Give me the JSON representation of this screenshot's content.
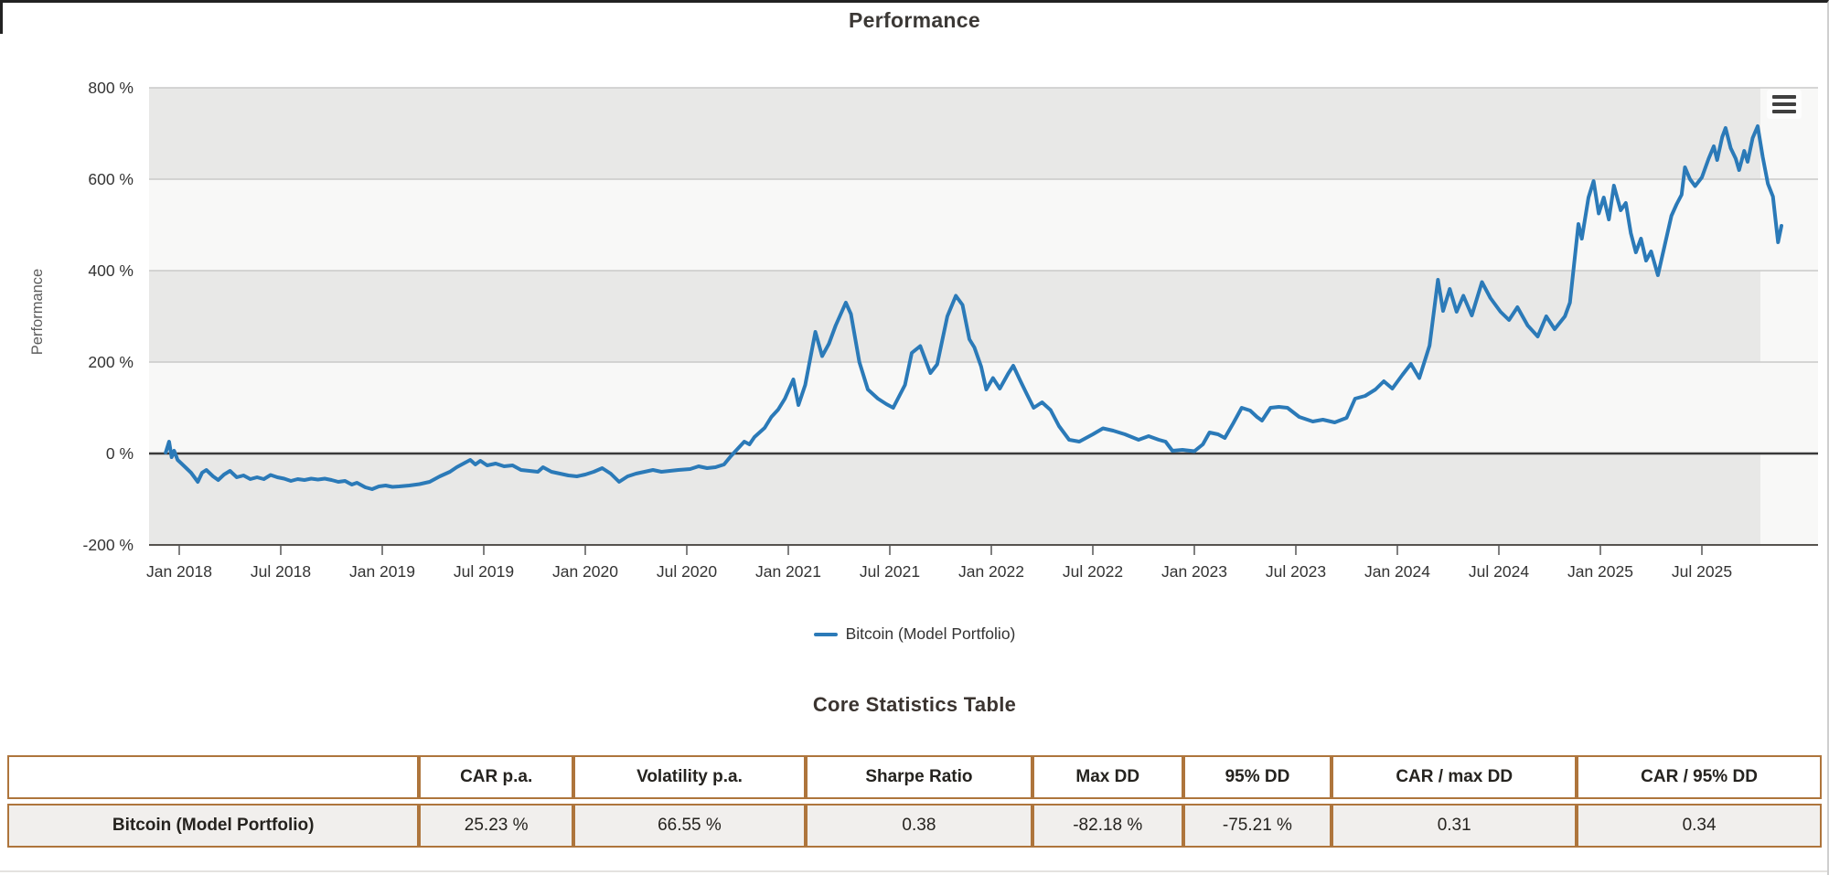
{
  "page": {
    "chart_title": "Performance",
    "table_title": "Core Statistics Table"
  },
  "chart_data": {
    "type": "line",
    "title": "Performance",
    "xlabel": "",
    "ylabel": "Performance",
    "legend_position": "bottom-center",
    "grid": true,
    "colors": {
      "plot_bg": "#f8f8f7",
      "band": "#e8e8e7",
      "gridline": "#c9c9c9",
      "zero_line": "#3a3a3a",
      "axis_line": "#56534f",
      "series_blue": "#2b7ab8"
    },
    "y_axis": {
      "min": -200,
      "max": 800,
      "tick_interval": 200,
      "tick_values": [
        800,
        600,
        400,
        200,
        0,
        -200
      ],
      "tick_labels": [
        "800 %",
        "600 %",
        "400 %",
        "200 %",
        "0 %",
        "-200 %"
      ]
    },
    "x_axis": {
      "tick_months": [
        0,
        6,
        12,
        18,
        24,
        30,
        36,
        42,
        48,
        54,
        60,
        66,
        72,
        78,
        84,
        90
      ],
      "tick_labels": [
        "Jan 2018",
        "Jul 2018",
        "Jan 2019",
        "Jul 2019",
        "Jan 2020",
        "Jul 2020",
        "Jan 2021",
        "Jul 2021",
        "Jan 2022",
        "Jul 2022",
        "Jan 2023",
        "Jul 2023",
        "Jan 2024",
        "Jul 2024",
        "Jan 2025",
        "Jul 2025"
      ]
    },
    "series": [
      {
        "name": "Bitcoin (Model Portfolio)",
        "color": "#2b7ab8",
        "unit": "%",
        "points": [
          [
            -0.8,
            2
          ],
          [
            -0.6,
            26
          ],
          [
            -0.45,
            -8
          ],
          [
            -0.3,
            6
          ],
          [
            -0.1,
            -14
          ],
          [
            0.3,
            -28
          ],
          [
            0.7,
            -42
          ],
          [
            1.1,
            -62
          ],
          [
            1.35,
            -42
          ],
          [
            1.6,
            -36
          ],
          [
            2,
            -50
          ],
          [
            2.3,
            -58
          ],
          [
            2.65,
            -46
          ],
          [
            3,
            -38
          ],
          [
            3.4,
            -52
          ],
          [
            3.8,
            -48
          ],
          [
            4.2,
            -56
          ],
          [
            4.6,
            -52
          ],
          [
            5,
            -56
          ],
          [
            5.4,
            -47
          ],
          [
            5.8,
            -52
          ],
          [
            6.2,
            -55
          ],
          [
            6.6,
            -60
          ],
          [
            7,
            -56
          ],
          [
            7.4,
            -58
          ],
          [
            7.8,
            -55
          ],
          [
            8.2,
            -57
          ],
          [
            8.6,
            -55
          ],
          [
            9,
            -58
          ],
          [
            9.4,
            -62
          ],
          [
            9.8,
            -60
          ],
          [
            10.2,
            -68
          ],
          [
            10.5,
            -64
          ],
          [
            11,
            -74
          ],
          [
            11.4,
            -78
          ],
          [
            11.8,
            -72
          ],
          [
            12.2,
            -70
          ],
          [
            12.6,
            -73
          ],
          [
            13,
            -72
          ],
          [
            13.6,
            -70
          ],
          [
            14.2,
            -67
          ],
          [
            14.8,
            -62
          ],
          [
            15.4,
            -50
          ],
          [
            16,
            -40
          ],
          [
            16.4,
            -30
          ],
          [
            16.8,
            -22
          ],
          [
            17.2,
            -14
          ],
          [
            17.5,
            -24
          ],
          [
            17.8,
            -16
          ],
          [
            18.2,
            -26
          ],
          [
            18.7,
            -22
          ],
          [
            19.2,
            -28
          ],
          [
            19.7,
            -26
          ],
          [
            20.2,
            -36
          ],
          [
            20.7,
            -38
          ],
          [
            21.2,
            -40
          ],
          [
            21.5,
            -30
          ],
          [
            22,
            -40
          ],
          [
            22.5,
            -44
          ],
          [
            23,
            -48
          ],
          [
            23.5,
            -50
          ],
          [
            24,
            -46
          ],
          [
            24.5,
            -40
          ],
          [
            25,
            -32
          ],
          [
            25.5,
            -44
          ],
          [
            26,
            -62
          ],
          [
            26.5,
            -50
          ],
          [
            27,
            -44
          ],
          [
            27.5,
            -40
          ],
          [
            28,
            -36
          ],
          [
            28.5,
            -40
          ],
          [
            29,
            -38
          ],
          [
            29.5,
            -36
          ],
          [
            30.2,
            -34
          ],
          [
            30.7,
            -28
          ],
          [
            31.2,
            -32
          ],
          [
            31.7,
            -30
          ],
          [
            32.2,
            -24
          ],
          [
            32.6,
            -6
          ],
          [
            33,
            10
          ],
          [
            33.4,
            26
          ],
          [
            33.7,
            20
          ],
          [
            34,
            36
          ],
          [
            34.6,
            56
          ],
          [
            35,
            80
          ],
          [
            35.4,
            96
          ],
          [
            35.8,
            120
          ],
          [
            36.3,
            162
          ],
          [
            36.6,
            106
          ],
          [
            37,
            150
          ],
          [
            37.6,
            266
          ],
          [
            38,
            213
          ],
          [
            38.4,
            240
          ],
          [
            38.8,
            280
          ],
          [
            39.4,
            330
          ],
          [
            39.7,
            305
          ],
          [
            40.2,
            200
          ],
          [
            40.7,
            140
          ],
          [
            41.3,
            120
          ],
          [
            41.8,
            108
          ],
          [
            42.2,
            100
          ],
          [
            42.9,
            150
          ],
          [
            43.3,
            220
          ],
          [
            43.8,
            235
          ],
          [
            44.4,
            176
          ],
          [
            44.8,
            195
          ],
          [
            45.4,
            300
          ],
          [
            45.9,
            345
          ],
          [
            46.3,
            325
          ],
          [
            46.7,
            250
          ],
          [
            47,
            232
          ],
          [
            47.4,
            190
          ],
          [
            47.7,
            140
          ],
          [
            48.1,
            165
          ],
          [
            48.5,
            142
          ],
          [
            49,
            175
          ],
          [
            49.3,
            192
          ],
          [
            49.7,
            160
          ],
          [
            50.1,
            130
          ],
          [
            50.5,
            100
          ],
          [
            51,
            112
          ],
          [
            51.5,
            95
          ],
          [
            52,
            60
          ],
          [
            52.6,
            30
          ],
          [
            53.2,
            26
          ],
          [
            54,
            42
          ],
          [
            54.6,
            55
          ],
          [
            55.2,
            50
          ],
          [
            55.9,
            42
          ],
          [
            56.7,
            30
          ],
          [
            57.3,
            38
          ],
          [
            57.9,
            30
          ],
          [
            58.3,
            26
          ],
          [
            58.7,
            6
          ],
          [
            59.3,
            8
          ],
          [
            60,
            5
          ],
          [
            60.5,
            20
          ],
          [
            60.9,
            46
          ],
          [
            61.4,
            42
          ],
          [
            61.8,
            34
          ],
          [
            62.3,
            66
          ],
          [
            62.8,
            100
          ],
          [
            63.3,
            94
          ],
          [
            63.7,
            80
          ],
          [
            64,
            72
          ],
          [
            64.5,
            100
          ],
          [
            65,
            102
          ],
          [
            65.5,
            100
          ],
          [
            66.2,
            80
          ],
          [
            67,
            70
          ],
          [
            67.6,
            74
          ],
          [
            68.3,
            68
          ],
          [
            69,
            78
          ],
          [
            69.5,
            120
          ],
          [
            70.1,
            126
          ],
          [
            70.7,
            140
          ],
          [
            71.2,
            158
          ],
          [
            71.7,
            142
          ],
          [
            72.3,
            172
          ],
          [
            72.8,
            196
          ],
          [
            73.3,
            165
          ],
          [
            73.9,
            236
          ],
          [
            74.4,
            380
          ],
          [
            74.7,
            312
          ],
          [
            75.1,
            360
          ],
          [
            75.5,
            310
          ],
          [
            75.9,
            345
          ],
          [
            76.4,
            302
          ],
          [
            77,
            375
          ],
          [
            77.5,
            340
          ],
          [
            78.1,
            310
          ],
          [
            78.6,
            292
          ],
          [
            79.1,
            320
          ],
          [
            79.7,
            280
          ],
          [
            80.3,
            256
          ],
          [
            80.8,
            300
          ],
          [
            81.3,
            272
          ],
          [
            81.9,
            300
          ],
          [
            82.2,
            330
          ],
          [
            82.7,
            502
          ],
          [
            82.9,
            470
          ],
          [
            83.3,
            560
          ],
          [
            83.6,
            596
          ],
          [
            83.9,
            525
          ],
          [
            84.2,
            560
          ],
          [
            84.5,
            512
          ],
          [
            84.8,
            586
          ],
          [
            85.2,
            532
          ],
          [
            85.5,
            548
          ],
          [
            85.8,
            482
          ],
          [
            86.1,
            440
          ],
          [
            86.4,
            470
          ],
          [
            86.7,
            422
          ],
          [
            87,
            442
          ],
          [
            87.4,
            390
          ],
          [
            87.8,
            455
          ],
          [
            88.2,
            520
          ],
          [
            88.5,
            545
          ],
          [
            88.8,
            566
          ],
          [
            89,
            626
          ],
          [
            89.3,
            600
          ],
          [
            89.6,
            585
          ],
          [
            90,
            604
          ],
          [
            90.4,
            645
          ],
          [
            90.7,
            672
          ],
          [
            90.9,
            642
          ],
          [
            91.2,
            692
          ],
          [
            91.4,
            712
          ],
          [
            91.7,
            668
          ],
          [
            92,
            645
          ],
          [
            92.2,
            620
          ],
          [
            92.5,
            662
          ],
          [
            92.7,
            638
          ],
          [
            93,
            690
          ],
          [
            93.3,
            716
          ],
          [
            93.6,
            648
          ],
          [
            93.9,
            590
          ],
          [
            94.2,
            562
          ],
          [
            94.5,
            462
          ],
          [
            94.7,
            498
          ]
        ]
      }
    ]
  },
  "menu": {
    "icon": "hamburger-icon"
  },
  "table": {
    "title": "Core Statistics Table",
    "columns": [
      "",
      "CAR p.a.",
      "Volatility p.a.",
      "Sharpe Ratio",
      "Max DD",
      "95% DD",
      "CAR / max DD",
      "CAR / 95% DD"
    ],
    "rows": [
      {
        "name": "Bitcoin (Model Portfolio)",
        "values": [
          "25.23 %",
          "66.55 %",
          "0.38",
          "-82.18 %",
          "-75.21 %",
          "0.31",
          "0.34"
        ]
      }
    ],
    "border_color": "#ae753c"
  }
}
